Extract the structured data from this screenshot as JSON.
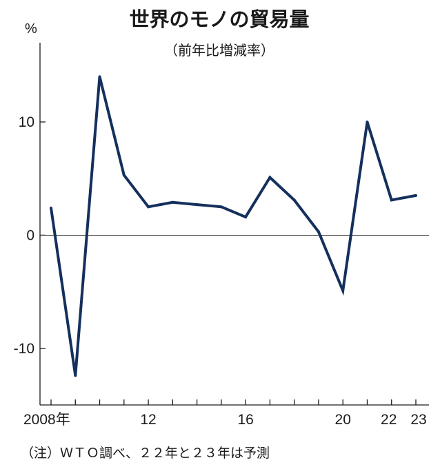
{
  "chart_data": {
    "type": "line",
    "title": "世界のモノの貿易量",
    "subtitle": "（前年比増減率）",
    "ylabel": "%",
    "xlabel": "",
    "x": [
      2008,
      2009,
      2010,
      2011,
      2012,
      2013,
      2014,
      2015,
      2016,
      2017,
      2018,
      2019,
      2020,
      2021,
      2022,
      2023
    ],
    "xlim": [
      2008,
      2023
    ],
    "x_tick_labels": [
      {
        "x": 2008,
        "label": "2008年"
      },
      {
        "x": 2012,
        "label": "12"
      },
      {
        "x": 2016,
        "label": "16"
      },
      {
        "x": 2020,
        "label": "20"
      },
      {
        "x": 2022,
        "label": "22"
      },
      {
        "x": 2023,
        "label": "23"
      }
    ],
    "ylim": [
      -15,
      17
    ],
    "y_ticks": [
      10,
      0,
      -10
    ],
    "y_tick_labels": [
      "10",
      "0",
      "-10"
    ],
    "series": [
      {
        "values": [
          2.4,
          -12.4,
          14.0,
          5.3,
          2.5,
          2.9,
          2.7,
          2.5,
          1.6,
          5.1,
          3.1,
          0.3,
          -4.9,
          10.0,
          3.1,
          3.5
        ]
      }
    ],
    "line_color": "#14305c",
    "grid": false,
    "legend": "none",
    "note": "（注）ＷＴＯ調べ、２２年と２３年は予測"
  }
}
